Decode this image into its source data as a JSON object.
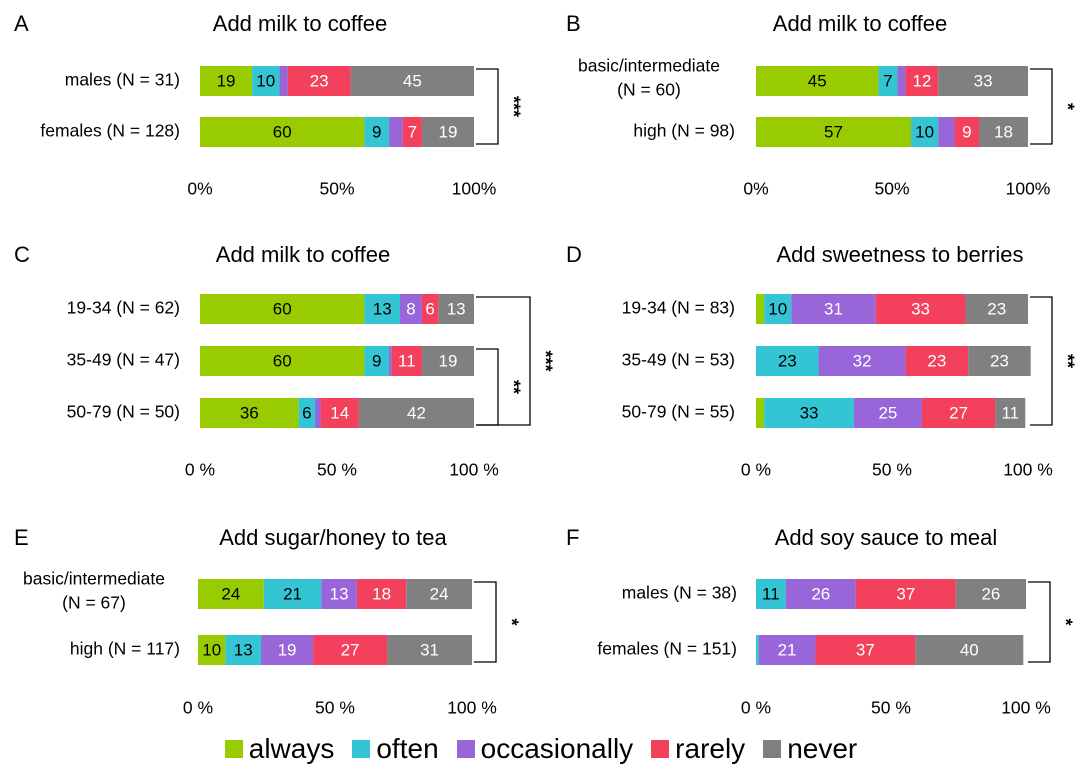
{
  "colors": {
    "always": "#99cc00",
    "often": "#33c5d4",
    "occasionally": "#9966d9",
    "rarely": "#f2405d",
    "never": "#808080"
  },
  "legend": [
    {
      "key": "always",
      "label": "always"
    },
    {
      "key": "often",
      "label": "often"
    },
    {
      "key": "occasionally",
      "label": "occasionally"
    },
    {
      "key": "rarely",
      "label": "rarely"
    },
    {
      "key": "never",
      "label": "never"
    }
  ],
  "chart_data": [
    {
      "type": "bar",
      "orientation": "horizontal-stacked-100",
      "panel_label": "A",
      "title": "Add milk to coffee",
      "x_ticks": [
        "0%",
        "50%",
        "100%"
      ],
      "xlim": [
        0,
        100
      ],
      "categories": [
        "males (N = 31)",
        "females (N = 128)"
      ],
      "series": [
        {
          "name": "always",
          "values": [
            19,
            60
          ],
          "labels": [
            "19",
            "60"
          ]
        },
        {
          "name": "often",
          "values": [
            10,
            9
          ],
          "labels": [
            "10",
            "9"
          ]
        },
        {
          "name": "occasionally",
          "values": [
            3,
            5
          ],
          "labels": [
            "",
            ""
          ]
        },
        {
          "name": "rarely",
          "values": [
            23,
            7
          ],
          "labels": [
            "23",
            "7"
          ]
        },
        {
          "name": "never",
          "values": [
            45,
            19
          ],
          "labels": [
            "45",
            "19"
          ]
        }
      ],
      "brackets": [
        {
          "from": 0,
          "to": 1,
          "label": "***",
          "level": 0
        }
      ]
    },
    {
      "type": "bar",
      "orientation": "horizontal-stacked-100",
      "panel_label": "B",
      "title": "Add milk to coffee",
      "x_ticks": [
        "0%",
        "50%",
        "100%"
      ],
      "xlim": [
        0,
        100
      ],
      "categories": [
        "basic/intermediate\n(N = 60)",
        "high (N = 98)"
      ],
      "series": [
        {
          "name": "always",
          "values": [
            45,
            57
          ],
          "labels": [
            "45",
            "57"
          ]
        },
        {
          "name": "often",
          "values": [
            7,
            10
          ],
          "labels": [
            "7",
            "10"
          ]
        },
        {
          "name": "occasionally",
          "values": [
            3,
            6
          ],
          "labels": [
            "",
            ""
          ]
        },
        {
          "name": "rarely",
          "values": [
            12,
            9
          ],
          "labels": [
            "12",
            "9"
          ]
        },
        {
          "name": "never",
          "values": [
            33,
            18
          ],
          "labels": [
            "33",
            "18"
          ]
        }
      ],
      "brackets": [
        {
          "from": 0,
          "to": 1,
          "label": "*",
          "level": 0
        }
      ]
    },
    {
      "type": "bar",
      "orientation": "horizontal-stacked-100",
      "panel_label": "C",
      "title": "Add milk to coffee",
      "x_ticks": [
        "0 %",
        "50 %",
        "100 %"
      ],
      "xlim": [
        0,
        100
      ],
      "categories": [
        "19-34 (N = 62)",
        "35-49 (N = 47)",
        "50-79 (N = 50)"
      ],
      "series": [
        {
          "name": "always",
          "values": [
            60,
            60,
            36
          ],
          "labels": [
            "60",
            "60",
            "36"
          ]
        },
        {
          "name": "often",
          "values": [
            13,
            9,
            6
          ],
          "labels": [
            "13",
            "9",
            "6"
          ]
        },
        {
          "name": "occasionally",
          "values": [
            8,
            1,
            2
          ],
          "labels": [
            "8",
            "",
            ""
          ]
        },
        {
          "name": "rarely",
          "values": [
            6,
            11,
            14
          ],
          "labels": [
            "6",
            "11",
            "14"
          ]
        },
        {
          "name": "never",
          "values": [
            13,
            19,
            42
          ],
          "labels": [
            "13",
            "19",
            "42"
          ]
        }
      ],
      "brackets": [
        {
          "from": 1,
          "to": 2,
          "label": "**",
          "level": 0
        },
        {
          "from": 0,
          "to": 2,
          "label": "***",
          "level": 1
        }
      ]
    },
    {
      "type": "bar",
      "orientation": "horizontal-stacked-100",
      "panel_label": "D",
      "title": "Add sweetness to berries",
      "x_ticks": [
        "0 %",
        "50 %",
        "100 %"
      ],
      "xlim": [
        0,
        100
      ],
      "categories": [
        "19-34 (N = 83)",
        "35-49 (N = 53)",
        "50-79 (N = 55)"
      ],
      "series": [
        {
          "name": "always",
          "values": [
            3,
            0,
            3
          ],
          "labels": [
            "",
            "",
            ""
          ]
        },
        {
          "name": "often",
          "values": [
            10,
            23,
            33
          ],
          "labels": [
            "10",
            "23",
            "33"
          ]
        },
        {
          "name": "occasionally",
          "values": [
            31,
            32,
            25
          ],
          "labels": [
            "31",
            "32",
            "25"
          ]
        },
        {
          "name": "rarely",
          "values": [
            33,
            23,
            27
          ],
          "labels": [
            "33",
            "23",
            "27"
          ]
        },
        {
          "name": "never",
          "values": [
            23,
            23,
            11
          ],
          "labels": [
            "23",
            "23",
            "11"
          ]
        }
      ],
      "brackets": [
        {
          "from": 0,
          "to": 2,
          "label": "**",
          "level": 0
        }
      ]
    },
    {
      "type": "bar",
      "orientation": "horizontal-stacked-100",
      "panel_label": "E",
      "title": "Add sugar/honey to tea",
      "x_ticks": [
        "0 %",
        "50 %",
        "100 %"
      ],
      "xlim": [
        0,
        100
      ],
      "categories": [
        "basic/intermediate\n(N = 67)",
        "high (N = 117)"
      ],
      "series": [
        {
          "name": "always",
          "values": [
            24,
            10
          ],
          "labels": [
            "24",
            "10"
          ]
        },
        {
          "name": "often",
          "values": [
            21,
            13
          ],
          "labels": [
            "21",
            "13"
          ]
        },
        {
          "name": "occasionally",
          "values": [
            13,
            19
          ],
          "labels": [
            "13",
            "19"
          ]
        },
        {
          "name": "rarely",
          "values": [
            18,
            27
          ],
          "labels": [
            "18",
            "27"
          ]
        },
        {
          "name": "never",
          "values": [
            24,
            31
          ],
          "labels": [
            "24",
            "31"
          ]
        }
      ],
      "brackets": [
        {
          "from": 0,
          "to": 1,
          "label": "*",
          "level": 0
        }
      ]
    },
    {
      "type": "bar",
      "orientation": "horizontal-stacked-100",
      "panel_label": "F",
      "title": "Add soy sauce to meal",
      "x_ticks": [
        "0 %",
        "50 %",
        "100 %"
      ],
      "xlim": [
        0,
        100
      ],
      "categories": [
        "males (N = 38)",
        "females (N = 151)"
      ],
      "series": [
        {
          "name": "always",
          "values": [
            0,
            0
          ],
          "labels": [
            "",
            ""
          ]
        },
        {
          "name": "often",
          "values": [
            11,
            1
          ],
          "labels": [
            "11",
            ""
          ]
        },
        {
          "name": "occasionally",
          "values": [
            26,
            21
          ],
          "labels": [
            "26",
            "21"
          ]
        },
        {
          "name": "rarely",
          "values": [
            37,
            37
          ],
          "labels": [
            "37",
            "37"
          ]
        },
        {
          "name": "never",
          "values": [
            26,
            40
          ],
          "labels": [
            "26",
            "40"
          ]
        }
      ],
      "brackets": [
        {
          "from": 0,
          "to": 1,
          "label": "*",
          "level": 0
        }
      ]
    }
  ]
}
